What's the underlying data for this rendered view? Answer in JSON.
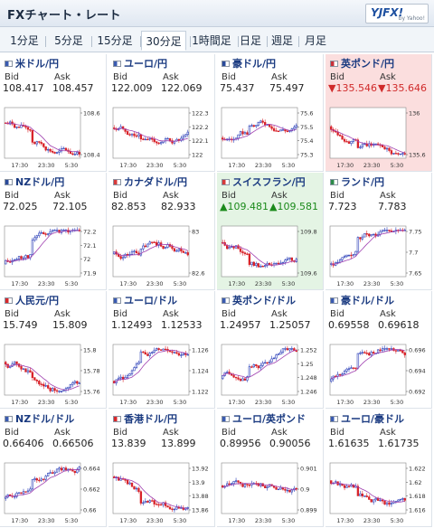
{
  "header": {
    "title": "FXチャート・レート",
    "logo_main": "YJFX!",
    "logo_sub": "by Yahoo!"
  },
  "tabs": [
    {
      "label": "1分足"
    },
    {
      "label": "5分足"
    },
    {
      "label": "15分足"
    },
    {
      "label": "30分足",
      "active": true
    },
    {
      "label": "1時間足"
    },
    {
      "label": "日足"
    },
    {
      "label": "週足"
    },
    {
      "label": "月足"
    }
  ],
  "bid_label": "Bid",
  "ask_label": "Ask",
  "x_ticks": [
    "17:30",
    "23:30",
    "5:30"
  ],
  "colors": {
    "up_candle": "#2b3fb8",
    "down_candle": "#d8232a",
    "ma": "#a040b0",
    "axis": "#444444",
    "up_bg": "#e4f4e4",
    "down_bg": "#fbdede"
  },
  "pairs": [
    {
      "name": "米ドル/円",
      "icon": "us-flag-icon",
      "bid": "108.417",
      "ask": "108.457",
      "change": "none",
      "y_ticks": [
        "108.6",
        "108.4"
      ],
      "chart_data": {
        "type": "candlestick",
        "start": 108.5,
        "trend": -0.4,
        "vol": 0.045
      }
    },
    {
      "name": "ユーロ/円",
      "icon": "us-flag-icon",
      "bid": "122.009",
      "ask": "122.069",
      "change": "none",
      "y_ticks": [
        "122.3",
        "122.2",
        "122.1",
        "122"
      ],
      "chart_data": {
        "type": "candlestick",
        "start": 122.15,
        "trend": -0.2,
        "vol": 0.04
      }
    },
    {
      "name": "豪ドル/円",
      "icon": "au-flag-icon",
      "bid": "75.437",
      "ask": "75.497",
      "change": "none",
      "y_ticks": [
        "75.6",
        "75.5",
        "75.4",
        "75.3"
      ],
      "chart_data": {
        "type": "candlestick",
        "start": 75.5,
        "trend": 0.2,
        "vol": 0.04
      }
    },
    {
      "name": "英ポンド/円",
      "icon": "uk-flag-icon",
      "bid": "▼135.546",
      "ask": "▼135.646",
      "change": "down",
      "y_ticks": [
        "136",
        "135.6"
      ],
      "chart_data": {
        "type": "candlestick",
        "start": 135.8,
        "trend": -0.25,
        "vol": 0.04
      }
    },
    {
      "name": "NZドル/円",
      "icon": "nz-flag-icon",
      "bid": "72.025",
      "ask": "72.105",
      "change": "none",
      "y_ticks": [
        "72.2",
        "72.1",
        "72",
        "71.9"
      ],
      "chart_data": {
        "type": "candlestick",
        "start": 71.95,
        "trend": 0.5,
        "vol": 0.045
      }
    },
    {
      "name": "カナダドル/円",
      "icon": "ca-flag-icon",
      "bid": "82.853",
      "ask": "82.933",
      "change": "none",
      "y_ticks": [
        "83",
        "82.6"
      ],
      "chart_data": {
        "type": "candlestick",
        "start": 82.8,
        "trend": 0.1,
        "vol": 0.05
      }
    },
    {
      "name": "スイスフラン/円",
      "icon": "ch-flag-icon",
      "bid": "▲109.481",
      "ask": "▲109.581",
      "change": "up",
      "y_ticks": [
        "109.8",
        "109.6"
      ],
      "chart_data": {
        "type": "candlestick",
        "start": 109.9,
        "trend": -0.35,
        "vol": 0.04
      }
    },
    {
      "name": "ランド/円",
      "icon": "za-flag-icon",
      "bid": "7.723",
      "ask": "7.783",
      "change": "none",
      "y_ticks": [
        "7.75",
        "7.7",
        "7.65"
      ],
      "chart_data": {
        "type": "candlestick",
        "start": 7.66,
        "trend": 0.5,
        "vol": 0.035
      }
    },
    {
      "name": "人民元/円",
      "icon": "cn-flag-icon",
      "bid": "15.749",
      "ask": "15.809",
      "change": "none",
      "y_ticks": [
        "15.8",
        "15.78",
        "15.76"
      ],
      "chart_data": {
        "type": "candlestick",
        "start": 15.8,
        "trend": -0.3,
        "vol": 0.04
      }
    },
    {
      "name": "ユーロ/ドル",
      "icon": "us-flag-icon",
      "bid": "1.12493",
      "ask": "1.12533",
      "change": "none",
      "y_ticks": [
        "1.126",
        "1.124",
        "1.122"
      ],
      "chart_data": {
        "type": "candlestick",
        "start": 1.1225,
        "trend": 0.45,
        "vol": 0.04
      }
    },
    {
      "name": "英ポンド/ドル",
      "icon": "us-flag-icon",
      "bid": "1.24957",
      "ask": "1.25057",
      "change": "none",
      "y_ticks": [
        "1.252",
        "1.25",
        "1.248",
        "1.246"
      ],
      "chart_data": {
        "type": "candlestick",
        "start": 1.247,
        "trend": 0.35,
        "vol": 0.04
      }
    },
    {
      "name": "豪ドル/ドル",
      "icon": "us-flag-icon",
      "bid": "0.69558",
      "ask": "0.69618",
      "change": "none",
      "y_ticks": [
        "0.696",
        "0.694",
        "0.692"
      ],
      "chart_data": {
        "type": "candlestick",
        "start": 0.6925,
        "trend": 0.45,
        "vol": 0.04
      }
    },
    {
      "name": "NZドル/ドル",
      "icon": "us-flag-icon",
      "bid": "0.66406",
      "ask": "0.66506",
      "change": "none",
      "y_ticks": [
        "0.664",
        "0.662",
        "0.66"
      ],
      "chart_data": {
        "type": "candlestick",
        "start": 0.6605,
        "trend": 0.4,
        "vol": 0.04
      }
    },
    {
      "name": "香港ドル/円",
      "icon": "hk-flag-icon",
      "bid": "13.839",
      "ask": "13.899",
      "change": "none",
      "y_ticks": [
        "13.92",
        "13.9",
        "13.88",
        "13.86"
      ],
      "chart_data": {
        "type": "candlestick",
        "start": 13.91,
        "trend": -0.45,
        "vol": 0.04
      }
    },
    {
      "name": "ユーロ/英ポンド",
      "icon": "us-flag-icon",
      "bid": "0.89956",
      "ask": "0.90056",
      "change": "none",
      "y_ticks": [
        "0.901",
        "0.9",
        "0.899"
      ],
      "chart_data": {
        "type": "candlestick",
        "start": 0.9,
        "trend": -0.1,
        "vol": 0.04
      }
    },
    {
      "name": "ユーロ/豪ドル",
      "icon": "us-flag-icon",
      "bid": "1.61635",
      "ask": "1.61735",
      "change": "none",
      "y_ticks": [
        "1.622",
        "1.62",
        "1.618",
        "1.616"
      ],
      "chart_data": {
        "type": "candlestick",
        "start": 1.62,
        "trend": -0.3,
        "vol": 0.04
      }
    }
  ]
}
